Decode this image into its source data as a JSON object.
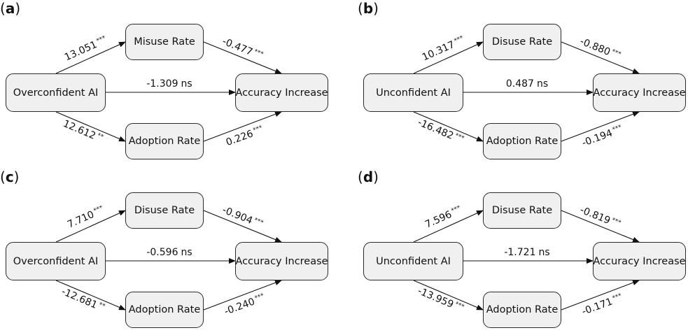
{
  "panels": [
    {
      "label_open": "(",
      "label_letter": "a",
      "label_close": ")",
      "source": "Overconfident AI",
      "mediator_top": "Misuse Rate",
      "mediator_bottom": "Adoption Rate",
      "outcome": "Accuracy Increase",
      "path_src_top": {
        "value": "13.051",
        "sig": "***"
      },
      "path_top_out": {
        "value": "-0.477",
        "sig": "***"
      },
      "path_direct": {
        "value": "-1.309",
        "sig": "ns"
      },
      "path_src_bot": {
        "value": "12.612",
        "sig": "**"
      },
      "path_bot_out": {
        "value": "0.226",
        "sig": "***"
      }
    },
    {
      "label_open": "(",
      "label_letter": "b",
      "label_close": ")",
      "source": "Unconfident AI",
      "mediator_top": "Disuse Rate",
      "mediator_bottom": "Adoption Rate",
      "outcome": "Accuracy Increase",
      "path_src_top": {
        "value": "10.317",
        "sig": "***"
      },
      "path_top_out": {
        "value": "-0.880",
        "sig": "***"
      },
      "path_direct": {
        "value": "0.487",
        "sig": "ns"
      },
      "path_src_bot": {
        "value": "-16.482",
        "sig": "***"
      },
      "path_bot_out": {
        "value": "-0.194",
        "sig": "***"
      }
    },
    {
      "label_open": "(",
      "label_letter": "c",
      "label_close": ")",
      "source": "Overconfident AI",
      "mediator_top": "Disuse Rate",
      "mediator_bottom": "Adoption Rate",
      "outcome": "Accuracy Increase",
      "path_src_top": {
        "value": "7.710",
        "sig": "***"
      },
      "path_top_out": {
        "value": "-0.904",
        "sig": "***"
      },
      "path_direct": {
        "value": "-0.596",
        "sig": "ns"
      },
      "path_src_bot": {
        "value": "-12.681",
        "sig": "**"
      },
      "path_bot_out": {
        "value": "-0.240",
        "sig": "***"
      }
    },
    {
      "label_open": "(",
      "label_letter": "d",
      "label_close": ")",
      "source": "Unconfident AI",
      "mediator_top": "Disuse Rate",
      "mediator_bottom": "Adoption Rate",
      "outcome": "Accuracy Increase",
      "path_src_top": {
        "value": "7.596",
        "sig": "***"
      },
      "path_top_out": {
        "value": "-0.819",
        "sig": "***"
      },
      "path_direct": {
        "value": "-1.721",
        "sig": "ns"
      },
      "path_src_bot": {
        "value": "-13.959",
        "sig": "***"
      },
      "path_bot_out": {
        "value": "-0.171",
        "sig": "***"
      }
    }
  ]
}
